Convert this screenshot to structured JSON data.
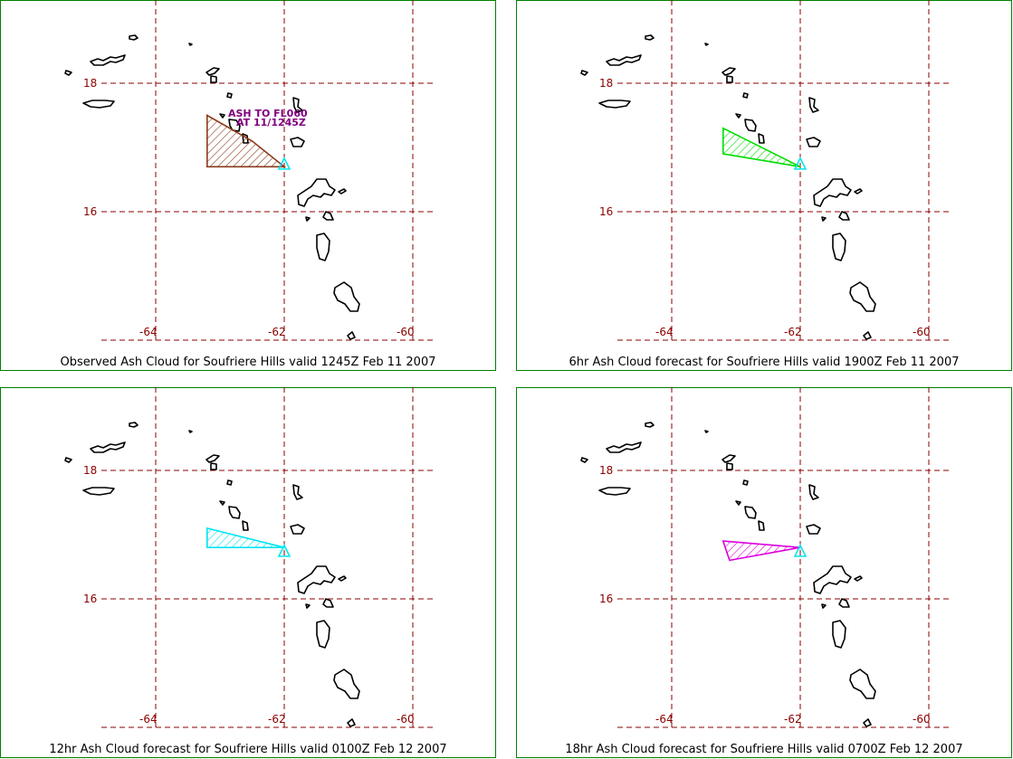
{
  "panels": [
    {
      "caption": "Observed Ash Cloud for Soufriere  Hills valid 1245Z Feb 11 2007",
      "plume_color": "#8b3a1a",
      "annotation": [
        "ASH  TO FL060",
        "AT 11/1245Z"
      ],
      "polygon": [
        [
          -63.2,
          17.5
        ],
        [
          -62.5,
          17.1
        ],
        [
          -62.0,
          16.7
        ],
        [
          -63.2,
          16.7
        ]
      ]
    },
    {
      "caption": "6hr Ash Cloud forecast for Soufriere  Hills valid 1900Z Feb 11 2007",
      "plume_color": "#00dd00",
      "annotation": [],
      "polygon": [
        [
          -63.2,
          17.3
        ],
        [
          -62.0,
          16.7
        ],
        [
          -63.2,
          16.9
        ]
      ]
    },
    {
      "caption": "12hr Ash Cloud forecast for Soufriere  Hills valid 0100Z Feb 12 2007",
      "plume_color": "#00e5ee",
      "annotation": [],
      "polygon": [
        [
          -63.2,
          17.1
        ],
        [
          -62.0,
          16.8
        ],
        [
          -63.2,
          16.8
        ]
      ]
    },
    {
      "caption": "18hr Ash Cloud forecast for Soufriere  Hills valid 0700Z Feb 12 2007",
      "plume_color": "#dd00dd",
      "annotation": [],
      "polygon": [
        [
          -63.2,
          16.9
        ],
        [
          -62.0,
          16.8
        ],
        [
          -63.1,
          16.6
        ]
      ]
    }
  ],
  "lat_labels": [
    "18",
    "16"
  ],
  "lon_labels": [
    "-64",
    "-62",
    "-60"
  ],
  "volcano_color": "#00e5ee",
  "frame_color": "#008000",
  "grid_color": "#8b0000"
}
